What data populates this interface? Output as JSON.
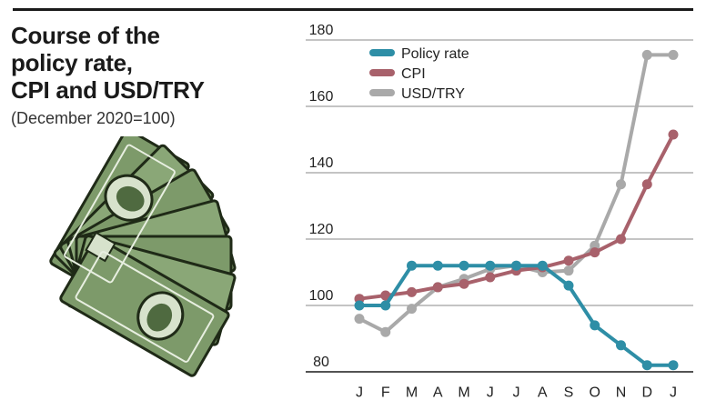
{
  "header": {
    "title_lines": [
      "Course of the",
      "policy rate,",
      "CPI and USD/TRY"
    ],
    "subtitle": "(December 2020=100)"
  },
  "illustration": {
    "icon": "dollar-bills-fan-icon"
  },
  "chart_data": {
    "type": "line",
    "title": "Course of the policy rate, CPI and USD/TRY",
    "subtitle": "(December 2020=100)",
    "x": [
      "J",
      "F",
      "M",
      "A",
      "M",
      "J",
      "J",
      "A",
      "S",
      "O",
      "N",
      "D",
      "J"
    ],
    "ylim": [
      80,
      180
    ],
    "yticks": [
      80,
      100,
      120,
      140,
      160,
      180
    ],
    "grid": true,
    "legend": "top-left",
    "series": [
      {
        "name": "Policy rate",
        "color": "#2e8ea6",
        "values": [
          100,
          100,
          112,
          112,
          112,
          112,
          112,
          112,
          106,
          94,
          88,
          82,
          82
        ]
      },
      {
        "name": "CPI",
        "color": "#a8616b",
        "values": [
          102,
          103,
          104,
          105.5,
          106.5,
          108.5,
          110.5,
          111.5,
          113.5,
          116,
          120,
          136.5,
          151.5
        ]
      },
      {
        "name": "USD/TRY",
        "color": "#a9a9a9",
        "values": [
          96,
          92,
          99,
          105.5,
          108,
          111,
          112,
          110,
          110.5,
          118,
          136.5,
          175.5,
          175.5
        ]
      }
    ]
  }
}
